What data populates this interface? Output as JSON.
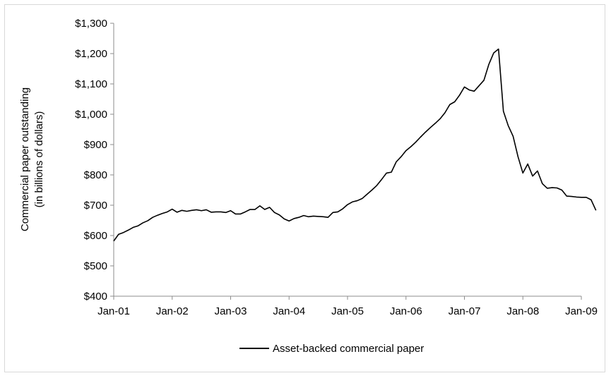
{
  "chart_data": {
    "type": "line",
    "title": "",
    "ylabel": [
      "Commercial paper outstanding",
      "(in billions of dollars)"
    ],
    "xlabel": "",
    "ylim": [
      400,
      1300
    ],
    "y_ticks": [
      400,
      500,
      600,
      700,
      800,
      900,
      1000,
      1100,
      1200,
      1300
    ],
    "y_tick_labels": [
      "$400",
      "$500",
      "$600",
      "$700",
      "$800",
      "$900",
      "$1,000",
      "$1,100",
      "$1,200",
      "$1,300"
    ],
    "x_tick_labels": [
      "Jan-01",
      "Jan-02",
      "Jan-03",
      "Jan-04",
      "Jan-05",
      "Jan-06",
      "Jan-07",
      "Jan-08",
      "Jan-09"
    ],
    "x_start": "2001-01",
    "grid": false,
    "legend_position": "bottom",
    "series": [
      {
        "name": "Asset-backed commercial paper",
        "color": "#000000",
        "values": [
          582,
          604,
          610,
          618,
          627,
          632,
          642,
          649,
          660,
          667,
          673,
          678,
          687,
          677,
          683,
          680,
          683,
          685,
          682,
          685,
          677,
          678,
          678,
          676,
          682,
          671,
          671,
          678,
          686,
          686,
          698,
          686,
          693,
          676,
          668,
          655,
          648,
          656,
          660,
          666,
          662,
          664,
          663,
          662,
          660,
          676,
          678,
          688,
          702,
          711,
          715,
          722,
          736,
          750,
          765,
          785,
          806,
          809,
          843,
          860,
          880,
          893,
          908,
          925,
          941,
          956,
          970,
          985,
          1005,
          1032,
          1041,
          1063,
          1090,
          1080,
          1076,
          1094,
          1112,
          1164,
          1202,
          1215,
          1010,
          962,
          927,
          860,
          806,
          836,
          796,
          813,
          771,
          756,
          758,
          757,
          750,
          730,
          729,
          727,
          726,
          726,
          718,
          683
        ]
      }
    ]
  }
}
